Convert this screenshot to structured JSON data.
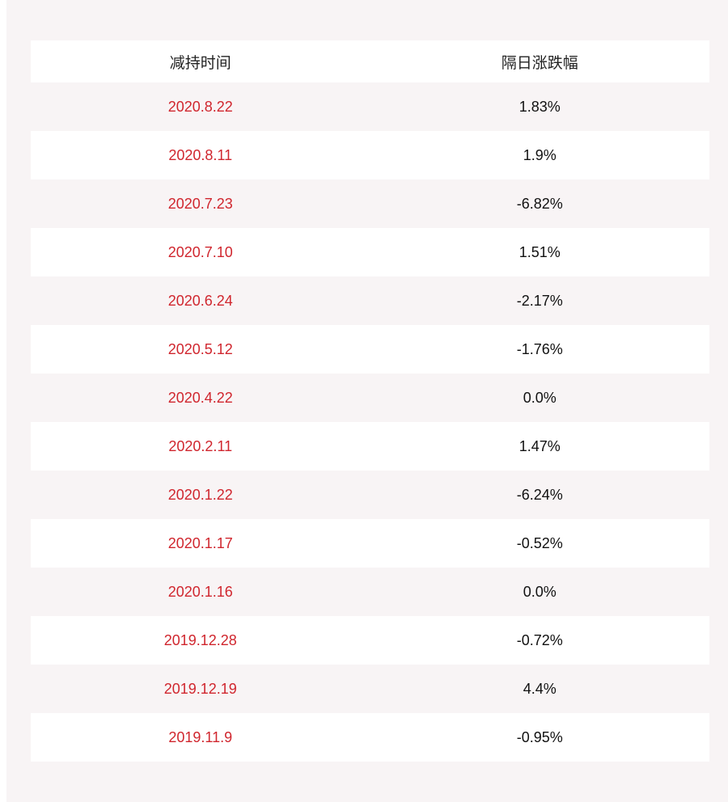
{
  "table": {
    "headers": [
      "减持时间",
      "隔日涨跌幅"
    ],
    "rows": [
      {
        "date": "2020.8.22",
        "change": "1.83%"
      },
      {
        "date": "2020.8.11",
        "change": "1.9%"
      },
      {
        "date": "2020.7.23",
        "change": "-6.82%"
      },
      {
        "date": "2020.7.10",
        "change": "1.51%"
      },
      {
        "date": "2020.6.24",
        "change": "-2.17%"
      },
      {
        "date": "2020.5.12",
        "change": "-1.76%"
      },
      {
        "date": "2020.4.22",
        "change": "0.0%"
      },
      {
        "date": "2020.2.11",
        "change": "1.47%"
      },
      {
        "date": "2020.1.22",
        "change": "-6.24%"
      },
      {
        "date": "2020.1.17",
        "change": "-0.52%"
      },
      {
        "date": "2020.1.16",
        "change": "0.0%"
      },
      {
        "date": "2019.12.28",
        "change": "-0.72%"
      },
      {
        "date": "2019.12.19",
        "change": "4.4%"
      },
      {
        "date": "2019.11.9",
        "change": "-0.95%"
      }
    ]
  },
  "colors": {
    "date_text": "#d0262e",
    "value_text": "#111111",
    "panel_bg": "#f8f4f5",
    "row_alt_bg": "#ffffff"
  }
}
